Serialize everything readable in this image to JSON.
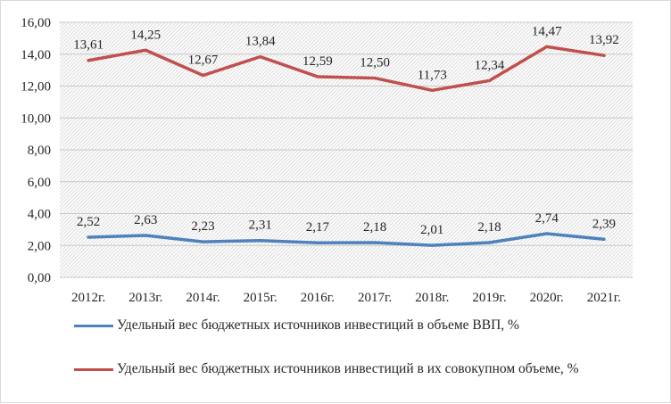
{
  "chart_data": {
    "type": "line",
    "categories": [
      "2012г.",
      "2013г.",
      "2014г.",
      "2015г.",
      "2016г.",
      "2017г.",
      "2018г.",
      "2019г.",
      "2020г.",
      "2021г."
    ],
    "ylim": [
      0,
      16
    ],
    "yticks": [
      "0,00",
      "2,00",
      "4,00",
      "6,00",
      "8,00",
      "10,00",
      "12,00",
      "14,00",
      "16,00"
    ],
    "grid": true,
    "legend_position": "bottom",
    "series": [
      {
        "name": "Удельный вес бюджетных источников инвестиций в объеме ВВП, %",
        "color": "#4f81bd",
        "values": [
          2.52,
          2.63,
          2.23,
          2.31,
          2.17,
          2.18,
          2.01,
          2.18,
          2.74,
          2.39
        ],
        "labels": [
          "2,52",
          "2,63",
          "2,23",
          "2,31",
          "2,17",
          "2,18",
          "2,01",
          "2,18",
          "2,74",
          "2,39"
        ]
      },
      {
        "name": "Удельный вес бюджетных источников инвестиций в их совокупном объеме, %",
        "color": "#c0504d",
        "values": [
          13.61,
          14.25,
          12.67,
          13.84,
          12.59,
          12.5,
          11.73,
          12.34,
          14.47,
          13.92
        ],
        "labels": [
          "13,61",
          "14,25",
          "12,67",
          "13,84",
          "12,59",
          "12,50",
          "11,73",
          "12,34",
          "14,47",
          "13,92"
        ]
      }
    ]
  }
}
